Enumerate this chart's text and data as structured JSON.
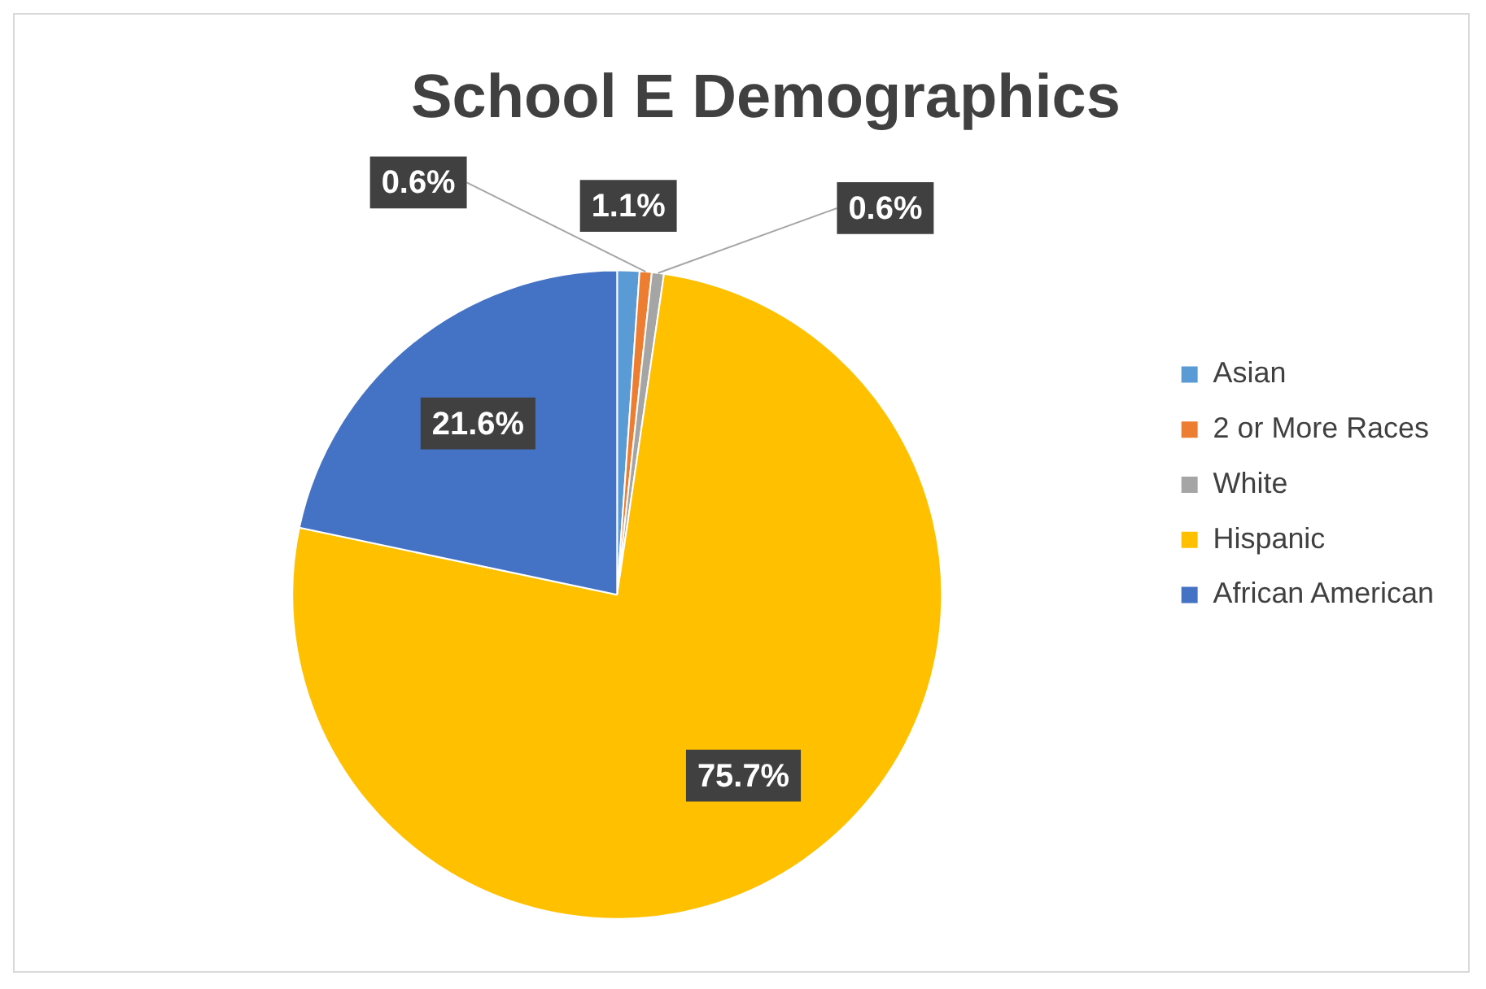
{
  "chart_data": {
    "type": "pie",
    "title": "School E Demographics",
    "categories": [
      "Asian",
      "2 or More Races",
      "White",
      "Hispanic",
      "African American"
    ],
    "values": [
      1.1,
      0.6,
      0.6,
      75.7,
      21.6
    ],
    "colors": [
      "#5b9bd5",
      "#ed7d31",
      "#a5a5a5",
      "#ffc000",
      "#4472c4"
    ],
    "value_labels": [
      "1.1%",
      "0.6%",
      "0.6%",
      "75.7%",
      "21.6%"
    ],
    "legend": "right"
  }
}
